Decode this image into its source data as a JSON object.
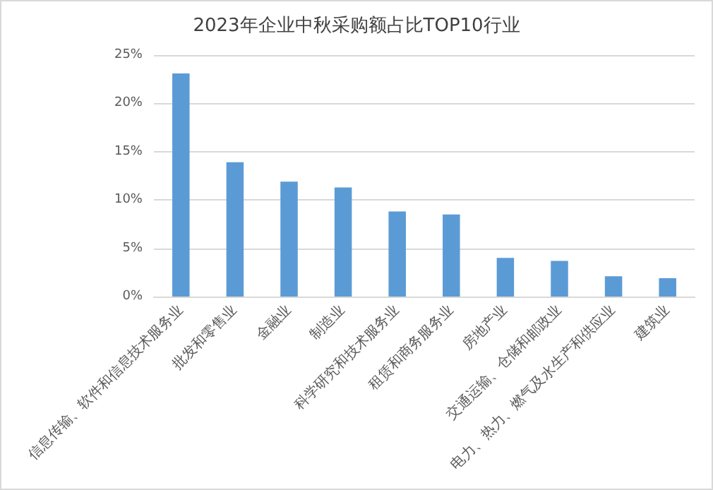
{
  "chart_data": {
    "type": "bar",
    "title": "2023年企业中秋采购额占比TOP10行业",
    "categories": [
      "信息传输、软件和信息技术服务业",
      "批发和零售业",
      "金融业",
      "制造业",
      "科学研究和技术服务业",
      "租赁和商务服务业",
      "房地产业",
      "交通运输、仓储和邮政业",
      "电力、热力、燃气及水生产和供应业",
      "建筑业"
    ],
    "values": [
      23.1,
      13.9,
      11.9,
      11.3,
      8.8,
      8.5,
      4.0,
      3.7,
      2.1,
      1.9
    ],
    "color": "#5b9bd5",
    "ylim": [
      0,
      25
    ],
    "yticks": [
      {
        "value": 0,
        "label": "0%"
      },
      {
        "value": 5,
        "label": "5%"
      },
      {
        "value": 10,
        "label": "10%"
      },
      {
        "value": 15,
        "label": "15%"
      },
      {
        "value": 20,
        "label": "20%"
      },
      {
        "value": 25,
        "label": "25%"
      }
    ],
    "grid": "y"
  }
}
